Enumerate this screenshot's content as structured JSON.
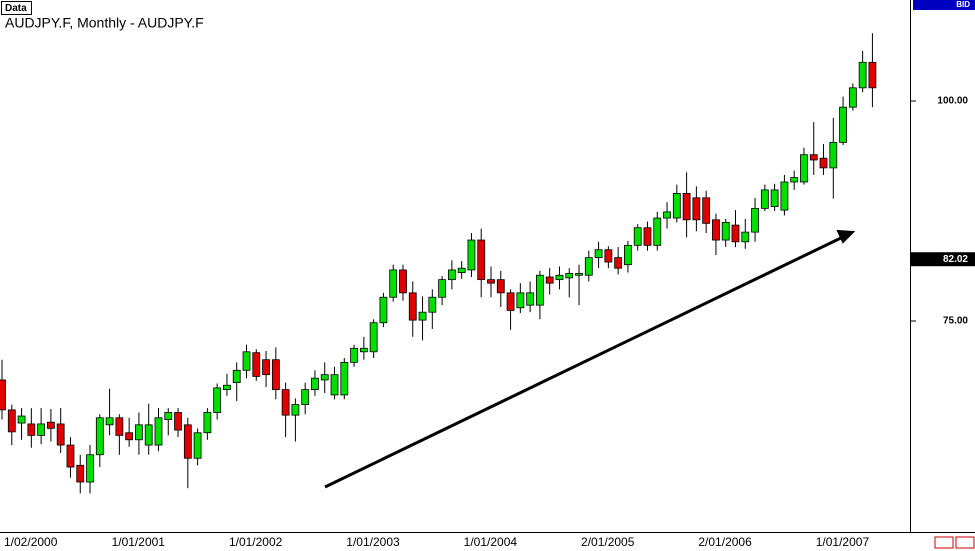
{
  "chart_data": {
    "type": "candlestick",
    "title": "AUDJPY.F, Monthly - AUDJPY.F",
    "panel_label": "Data",
    "price_label": "BID",
    "last_price": {
      "value": 82.02,
      "label": "82.02"
    },
    "up_color": "#00e000",
    "down_color": "#e00000",
    "ylim": [
      51.02,
      111.48
    ],
    "yticks": [
      {
        "value": 75,
        "label": "75.00"
      },
      {
        "value": 100,
        "label": "100.00"
      }
    ],
    "categories": [
      "1/02/2000",
      null,
      null,
      null,
      null,
      null,
      null,
      null,
      null,
      null,
      null,
      "1/01/2001",
      null,
      null,
      null,
      null,
      null,
      null,
      null,
      null,
      null,
      null,
      null,
      "1/01/2002",
      null,
      null,
      null,
      null,
      null,
      null,
      null,
      null,
      null,
      null,
      null,
      "1/01/2003",
      null,
      null,
      null,
      null,
      null,
      null,
      null,
      null,
      null,
      null,
      null,
      "1/01/2004",
      null,
      null,
      null,
      null,
      null,
      null,
      null,
      null,
      null,
      null,
      null,
      "2/01/2005",
      null,
      null,
      null,
      null,
      null,
      null,
      null,
      null,
      null,
      null,
      null,
      "2/01/2006",
      null,
      null,
      null,
      null,
      null,
      null,
      null,
      null,
      null,
      null,
      null,
      "1/01/2007",
      null,
      null,
      null,
      null,
      null,
      null
    ],
    "open": [
      68.3,
      64.9,
      63.4,
      63.3,
      62.0,
      63.5,
      63.3,
      60.9,
      58.6,
      56.7,
      59.8,
      63.2,
      64.0,
      62.3,
      61.5,
      60.9,
      60.9,
      63.8,
      64.6,
      63.2,
      59.4,
      62.3,
      64.6,
      67.2,
      68.0,
      69.4,
      71.4,
      70.6,
      70.6,
      67.2,
      64.3,
      65.5,
      67.2,
      68.3,
      66.6,
      66.6,
      70.3,
      71.5,
      71.5,
      74.8,
      77.7,
      80.8,
      78.2,
      75.1,
      76.0,
      77.7,
      79.7,
      80.5,
      80.8,
      84.2,
      79.7,
      79.7,
      78.2,
      76.5,
      76.8,
      76.8,
      80.0,
      79.7,
      79.9,
      80.2,
      80.2,
      82.2,
      83.1,
      82.2,
      81.4,
      83.6,
      85.6,
      83.6,
      86.7,
      86.7,
      89.5,
      89.0,
      89.0,
      86.5,
      84.2,
      85.9,
      84.0,
      85.1,
      87.8,
      88.0,
      87.6,
      90.8,
      90.8,
      93.9,
      93.5,
      92.4,
      95.3,
      99.3,
      101.5,
      104.4
    ],
    "high": [
      70.6,
      65.5,
      65.1,
      65.1,
      65.1,
      65.0,
      65.1,
      61.8,
      59.8,
      60.9,
      64.4,
      67.3,
      64.4,
      64.0,
      64.6,
      65.6,
      65.1,
      65.1,
      65.1,
      64.0,
      62.8,
      65.1,
      67.9,
      69.0,
      70.3,
      72.3,
      71.8,
      71.6,
      72.0,
      68.0,
      66.2,
      68.0,
      69.4,
      70.3,
      69.8,
      70.8,
      72.3,
      73.2,
      75.2,
      78.2,
      81.4,
      81.4,
      79.5,
      77.8,
      78.6,
      80.1,
      81.9,
      81.8,
      85.0,
      85.5,
      81.2,
      80.7,
      78.6,
      79.3,
      79.5,
      80.7,
      81.0,
      81.2,
      81.0,
      81.4,
      83.0,
      84.0,
      83.5,
      83.4,
      84.1,
      86.0,
      86.3,
      87.4,
      88.5,
      90.5,
      91.9,
      90.3,
      89.8,
      87.2,
      86.6,
      87.6,
      86.6,
      89.0,
      90.5,
      90.6,
      91.6,
      92.1,
      94.7,
      97.6,
      95.1,
      98.1,
      100.5,
      102.0,
      105.7,
      107.7
    ],
    "low": [
      63.8,
      60.9,
      61.5,
      60.6,
      61.0,
      61.3,
      60.0,
      57.2,
      55.4,
      55.4,
      58.4,
      62.0,
      59.8,
      60.7,
      59.8,
      59.8,
      60.2,
      62.0,
      61.8,
      56.0,
      58.6,
      61.5,
      63.8,
      66.5,
      65.9,
      68.5,
      68.2,
      67.5,
      66.1,
      61.8,
      61.3,
      64.4,
      66.5,
      66.8,
      66.1,
      66.1,
      69.8,
      70.6,
      70.8,
      74.3,
      77.2,
      77.3,
      73.2,
      72.8,
      74.1,
      76.8,
      78.6,
      79.8,
      80.0,
      77.7,
      77.7,
      76.6,
      74.0,
      75.9,
      76.0,
      75.2,
      78.0,
      78.6,
      77.7,
      76.8,
      79.5,
      81.0,
      81.0,
      80.3,
      80.5,
      83.0,
      83.0,
      83.0,
      85.5,
      86.2,
      84.5,
      85.2,
      85.0,
      82.5,
      83.4,
      83.4,
      83.2,
      84.0,
      87.5,
      87.5,
      87.0,
      89.9,
      90.5,
      91.6,
      91.6,
      88.9,
      95.0,
      98.9,
      101.0,
      99.3
    ],
    "close": [
      64.9,
      62.4,
      64.2,
      62.0,
      63.3,
      62.8,
      60.9,
      58.4,
      56.7,
      59.8,
      64.0,
      64.0,
      62.0,
      61.5,
      63.2,
      63.2,
      64.0,
      64.6,
      62.6,
      59.4,
      62.3,
      64.6,
      67.4,
      67.7,
      69.4,
      71.5,
      68.7,
      68.9,
      67.2,
      64.3,
      65.5,
      67.2,
      68.5,
      68.9,
      68.9,
      70.3,
      71.9,
      71.9,
      74.8,
      77.7,
      80.8,
      78.2,
      75.1,
      76.0,
      77.7,
      79.7,
      80.8,
      81.0,
      84.2,
      79.7,
      79.3,
      78.2,
      76.2,
      78.2,
      78.2,
      80.2,
      79.3,
      80.2,
      80.4,
      80.4,
      82.2,
      83.1,
      81.7,
      81.0,
      83.6,
      85.6,
      83.6,
      86.7,
      87.4,
      89.5,
      86.5,
      86.5,
      86.1,
      84.2,
      86.2,
      84.0,
      85.1,
      87.8,
      89.9,
      89.9,
      90.8,
      91.3,
      93.9,
      93.3,
      92.4,
      95.3,
      99.3,
      101.5,
      104.4,
      101.5
    ]
  }
}
